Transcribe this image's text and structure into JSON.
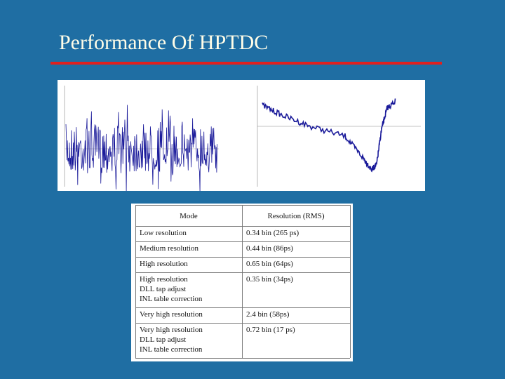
{
  "slide": {
    "title": "Performance Of HPTDC"
  },
  "table": {
    "header": [
      "Mode",
      "Resolution (RMS)"
    ],
    "rows": [
      [
        [
          "Low resolution"
        ],
        [
          "0.34 bin (265 ps)"
        ]
      ],
      [
        [
          "Medium resolution"
        ],
        [
          "0.44 bin (86ps)"
        ]
      ],
      [
        [
          "High resolution"
        ],
        [
          "0.65 bin (64ps)"
        ]
      ],
      [
        [
          "High resolution",
          "DLL tap adjust",
          "INL table correction"
        ],
        [
          "0.35 bin (34ps)"
        ]
      ],
      [
        [
          "Very high resolution"
        ],
        [
          "2.4 bin (58ps)"
        ]
      ],
      [
        [
          "Very high resolution",
          "DLL tap adjust",
          "INL table correction"
        ],
        [
          "0.72 bin (17 ps)"
        ]
      ]
    ]
  }
}
